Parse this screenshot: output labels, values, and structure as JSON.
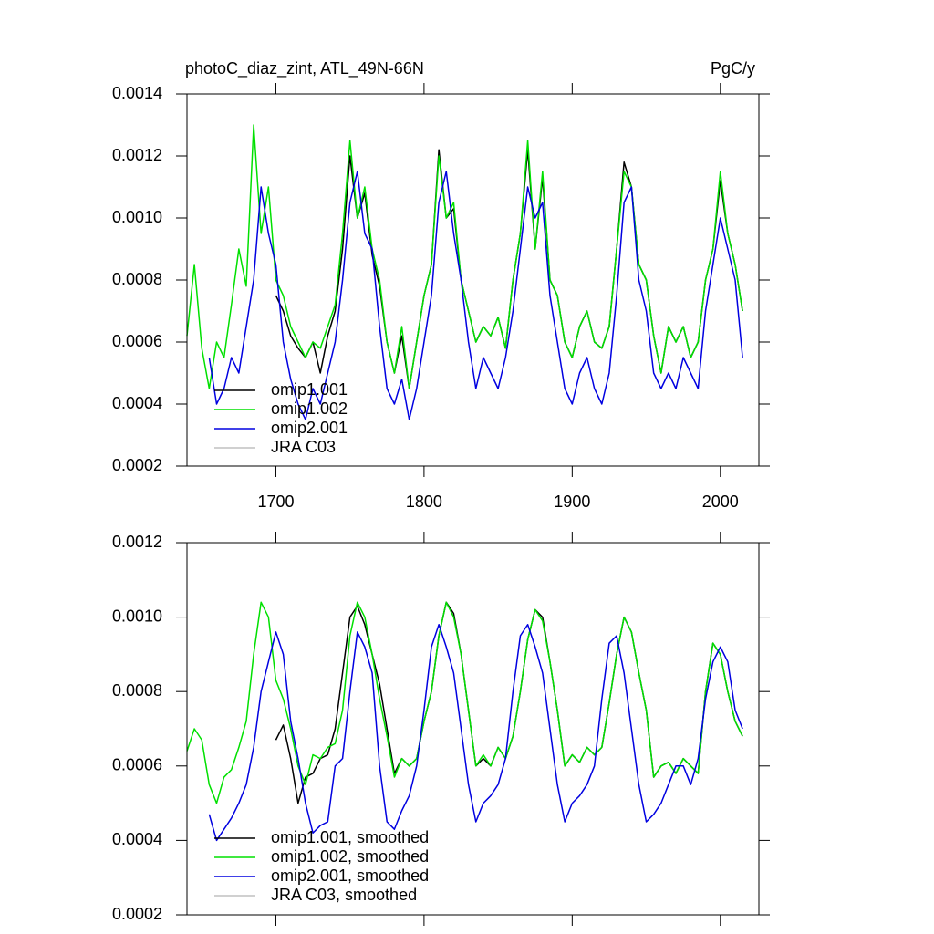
{
  "chart_data": [
    {
      "type": "line",
      "title": "photoC_diaz_zint, ATL_49N-66N",
      "units": "PgC/y",
      "x": [
        1640,
        1645,
        1650,
        1655,
        1660,
        1665,
        1670,
        1675,
        1680,
        1685,
        1690,
        1695,
        1700,
        1705,
        1710,
        1715,
        1720,
        1725,
        1730,
        1735,
        1740,
        1745,
        1750,
        1755,
        1760,
        1765,
        1770,
        1775,
        1780,
        1785,
        1790,
        1795,
        1800,
        1805,
        1810,
        1815,
        1820,
        1825,
        1830,
        1835,
        1840,
        1845,
        1850,
        1855,
        1860,
        1865,
        1870,
        1875,
        1880,
        1885,
        1890,
        1895,
        1900,
        1905,
        1910,
        1915,
        1920,
        1925,
        1930,
        1935,
        1940,
        1945,
        1950,
        1955,
        1960,
        1965,
        1970,
        1975,
        1980,
        1985,
        1990,
        1995,
        2000,
        2005,
        2010,
        2015
      ],
      "xlim": [
        1640,
        2026
      ],
      "xticks": [
        1700,
        1800,
        1900,
        2000
      ],
      "xtick_labels": true,
      "ylim": [
        0.0002,
        0.0014
      ],
      "yticks": [
        0.0002,
        0.0004,
        0.0006,
        0.0008,
        {
          "value": 0.001,
          "label": "0.0010"
        },
        0.0012,
        0.0014
      ],
      "series": [
        {
          "name": "omip1.001",
          "color": "#000000",
          "values": [
            null,
            null,
            null,
            null,
            null,
            null,
            null,
            null,
            null,
            null,
            null,
            null,
            0.00075,
            0.0007,
            0.00062,
            0.00058,
            0.00055,
            0.0006,
            0.0005,
            0.00062,
            0.0007,
            0.0009,
            0.0012,
            0.001,
            0.00108,
            0.00088,
            0.00078,
            0.0006,
            0.0005,
            0.00062,
            0.00045,
            0.0006,
            0.00075,
            0.00085,
            0.00122,
            0.001,
            0.00103,
            0.0008,
            0.0007,
            0.0006,
            0.00065,
            0.00062,
            0.00068,
            0.00058,
            0.0008,
            0.00095,
            0.00122,
            0.0009,
            0.00113,
            0.0008,
            0.00075,
            0.0006,
            0.00055,
            0.00065,
            0.0007,
            0.0006,
            0.00058,
            0.00065,
            0.0009,
            0.00118,
            0.0011,
            0.00085,
            0.0008,
            0.00062,
            0.0005,
            0.00065,
            0.0006,
            0.00065,
            0.00055,
            0.0006,
            0.0008,
            0.0009,
            0.00112,
            0.00095,
            0.00085,
            0.0007
          ]
        },
        {
          "name": "omip1.002",
          "color": "#00e000",
          "values": [
            0.00062,
            0.00085,
            0.00058,
            0.00045,
            0.0006,
            0.00055,
            0.00072,
            0.0009,
            0.00078,
            0.0013,
            0.00095,
            0.0011,
            0.0008,
            0.00075,
            0.00065,
            0.0006,
            0.00055,
            0.0006,
            0.00058,
            0.00065,
            0.00072,
            0.00095,
            0.00125,
            0.001,
            0.0011,
            0.0009,
            0.0008,
            0.0006,
            0.0005,
            0.00065,
            0.00045,
            0.0006,
            0.00075,
            0.00085,
            0.0012,
            0.001,
            0.00105,
            0.0008,
            0.0007,
            0.0006,
            0.00065,
            0.00062,
            0.00068,
            0.00058,
            0.0008,
            0.00095,
            0.00125,
            0.0009,
            0.00115,
            0.0008,
            0.00075,
            0.0006,
            0.00055,
            0.00065,
            0.0007,
            0.0006,
            0.00058,
            0.00065,
            0.0009,
            0.00115,
            0.0011,
            0.00085,
            0.0008,
            0.00062,
            0.0005,
            0.00065,
            0.0006,
            0.00065,
            0.00055,
            0.0006,
            0.0008,
            0.0009,
            0.00115,
            0.00095,
            0.00085,
            0.0007
          ]
        },
        {
          "name": "omip2.001",
          "color": "#0000e0",
          "values": [
            null,
            null,
            null,
            0.00055,
            0.0004,
            0.00045,
            0.00055,
            0.0005,
            0.00065,
            0.0008,
            0.0011,
            0.00095,
            0.00085,
            0.0006,
            0.00048,
            0.0004,
            0.00035,
            0.00045,
            0.0004,
            0.0005,
            0.0006,
            0.0008,
            0.00105,
            0.00115,
            0.00095,
            0.0009,
            0.00065,
            0.00045,
            0.0004,
            0.00048,
            0.00035,
            0.00045,
            0.0006,
            0.00075,
            0.00105,
            0.00115,
            0.00095,
            0.0008,
            0.0006,
            0.00045,
            0.00055,
            0.0005,
            0.00045,
            0.00055,
            0.0007,
            0.0009,
            0.0011,
            0.001,
            0.00105,
            0.00075,
            0.0006,
            0.00045,
            0.0004,
            0.0005,
            0.00055,
            0.00045,
            0.0004,
            0.0005,
            0.00075,
            0.00105,
            0.0011,
            0.0008,
            0.0007,
            0.0005,
            0.00045,
            0.0005,
            0.00045,
            0.00055,
            0.0005,
            0.00045,
            0.0007,
            0.00085,
            0.001,
            0.0009,
            0.0008,
            0.00055
          ]
        },
        {
          "name": "JRA C03",
          "color": "#c0c0c0",
          "values": [
            null,
            null,
            null,
            null,
            null,
            null,
            null,
            null,
            null,
            null,
            null,
            null,
            null,
            null,
            null,
            null,
            null,
            null,
            null,
            null,
            null,
            null,
            null,
            null,
            null,
            null,
            null,
            null,
            null,
            null,
            null,
            null,
            null,
            null,
            null,
            null,
            null,
            null,
            null,
            null,
            null,
            null,
            null,
            null,
            null,
            null,
            null,
            null,
            null,
            null,
            null,
            null,
            null,
            null,
            null,
            null,
            null,
            null,
            null,
            null,
            null,
            null,
            null,
            null,
            null,
            null,
            null,
            null,
            null,
            null,
            null,
            null,
            null,
            null,
            null,
            null
          ]
        }
      ]
    },
    {
      "type": "line",
      "x": [
        1640,
        1645,
        1650,
        1655,
        1660,
        1665,
        1670,
        1675,
        1680,
        1685,
        1690,
        1695,
        1700,
        1705,
        1710,
        1715,
        1720,
        1725,
        1730,
        1735,
        1740,
        1745,
        1750,
        1755,
        1760,
        1765,
        1770,
        1775,
        1780,
        1785,
        1790,
        1795,
        1800,
        1805,
        1810,
        1815,
        1820,
        1825,
        1830,
        1835,
        1840,
        1845,
        1850,
        1855,
        1860,
        1865,
        1870,
        1875,
        1880,
        1885,
        1890,
        1895,
        1900,
        1905,
        1910,
        1915,
        1920,
        1925,
        1930,
        1935,
        1940,
        1945,
        1950,
        1955,
        1960,
        1965,
        1970,
        1975,
        1980,
        1985,
        1990,
        1995,
        2000,
        2005,
        2010,
        2015
      ],
      "xlim": [
        1640,
        2026
      ],
      "xticks": [
        1700,
        1800,
        1900,
        2000
      ],
      "xtick_labels": false,
      "ylim": [
        0.0002,
        0.0012
      ],
      "yticks": [
        0.0002,
        0.0004,
        0.0006,
        0.0008,
        {
          "value": 0.001,
          "label": "0.0010"
        },
        0.0012
      ],
      "series": [
        {
          "name": "omip1.001, smoothed",
          "color": "#000000",
          "values": [
            null,
            null,
            null,
            null,
            null,
            null,
            null,
            null,
            null,
            null,
            null,
            null,
            0.00067,
            0.00071,
            0.00062,
            0.0005,
            0.00057,
            0.00058,
            0.00062,
            0.00063,
            0.0007,
            0.00085,
            0.001,
            0.00103,
            0.00098,
            0.0009,
            0.00082,
            0.0007,
            0.00058,
            0.00062,
            0.0006,
            0.00062,
            0.00072,
            0.0008,
            0.00095,
            0.00104,
            0.00101,
            0.0009,
            0.00075,
            0.0006,
            0.00062,
            0.0006,
            0.00065,
            0.00062,
            0.00068,
            0.0008,
            0.00094,
            0.00102,
            0.001,
            0.00088,
            0.00075,
            0.0006,
            0.00063,
            0.00061,
            0.00065,
            0.00063,
            0.00065,
            0.00077,
            0.0009,
            0.001,
            0.00096,
            0.00085,
            0.00075,
            0.00057,
            0.0006,
            0.00061,
            0.00058,
            0.00062,
            0.0006,
            0.00058,
            0.0008,
            0.00093,
            0.0009,
            0.0008,
            0.00072,
            0.00068
          ]
        },
        {
          "name": "omip1.002, smoothed",
          "color": "#00e000",
          "values": [
            0.00064,
            0.0007,
            0.00067,
            0.00055,
            0.0005,
            0.00057,
            0.00059,
            0.00065,
            0.00072,
            0.0009,
            0.00104,
            0.001,
            0.00083,
            0.00078,
            0.0007,
            0.0006,
            0.00055,
            0.00063,
            0.00062,
            0.00065,
            0.00066,
            0.00075,
            0.00095,
            0.00104,
            0.001,
            0.0009,
            0.00078,
            0.00068,
            0.00057,
            0.00062,
            0.0006,
            0.00062,
            0.00072,
            0.0008,
            0.00095,
            0.00104,
            0.001,
            0.0009,
            0.00075,
            0.0006,
            0.00063,
            0.0006,
            0.00065,
            0.00062,
            0.00068,
            0.0008,
            0.00094,
            0.00102,
            0.00099,
            0.00088,
            0.00075,
            0.0006,
            0.00063,
            0.00061,
            0.00065,
            0.00063,
            0.00065,
            0.00077,
            0.0009,
            0.001,
            0.00096,
            0.00085,
            0.00075,
            0.00057,
            0.0006,
            0.00061,
            0.00058,
            0.00062,
            0.0006,
            0.00058,
            0.0008,
            0.00093,
            0.0009,
            0.0008,
            0.00072,
            0.00068
          ]
        },
        {
          "name": "omip2.001, smoothed",
          "color": "#0000e0",
          "values": [
            null,
            null,
            null,
            0.00047,
            0.0004,
            0.00043,
            0.00046,
            0.0005,
            0.00055,
            0.00065,
            0.0008,
            0.00088,
            0.00096,
            0.0009,
            0.00072,
            0.00062,
            0.0005,
            0.00042,
            0.00044,
            0.00045,
            0.0006,
            0.00062,
            0.0008,
            0.00096,
            0.00092,
            0.00085,
            0.0006,
            0.00045,
            0.00043,
            0.00048,
            0.00052,
            0.0006,
            0.00075,
            0.00092,
            0.00098,
            0.00092,
            0.00085,
            0.0007,
            0.00055,
            0.00045,
            0.0005,
            0.00052,
            0.00055,
            0.00062,
            0.0008,
            0.00095,
            0.00098,
            0.00092,
            0.00085,
            0.0007,
            0.00055,
            0.00045,
            0.0005,
            0.00052,
            0.00055,
            0.0006,
            0.00078,
            0.00093,
            0.00095,
            0.00085,
            0.0007,
            0.00055,
            0.00045,
            0.00047,
            0.0005,
            0.00055,
            0.0006,
            0.0006,
            0.00055,
            0.00062,
            0.00078,
            0.00088,
            0.00092,
            0.00088,
            0.00075,
            0.0007
          ]
        },
        {
          "name": "JRA C03, smoothed",
          "color": "#c0c0c0",
          "values": [
            null,
            null,
            null,
            null,
            null,
            null,
            null,
            null,
            null,
            null,
            null,
            null,
            null,
            null,
            null,
            null,
            null,
            null,
            null,
            null,
            null,
            null,
            null,
            null,
            null,
            null,
            null,
            null,
            null,
            null,
            null,
            null,
            null,
            null,
            null,
            null,
            null,
            null,
            null,
            null,
            null,
            null,
            null,
            null,
            null,
            null,
            null,
            null,
            null,
            null,
            null,
            null,
            null,
            null,
            null,
            null,
            null,
            null,
            null,
            null,
            null,
            null,
            null,
            null,
            null,
            null,
            null,
            null,
            null,
            null,
            null,
            null,
            null,
            null,
            null,
            null
          ]
        }
      ]
    }
  ]
}
